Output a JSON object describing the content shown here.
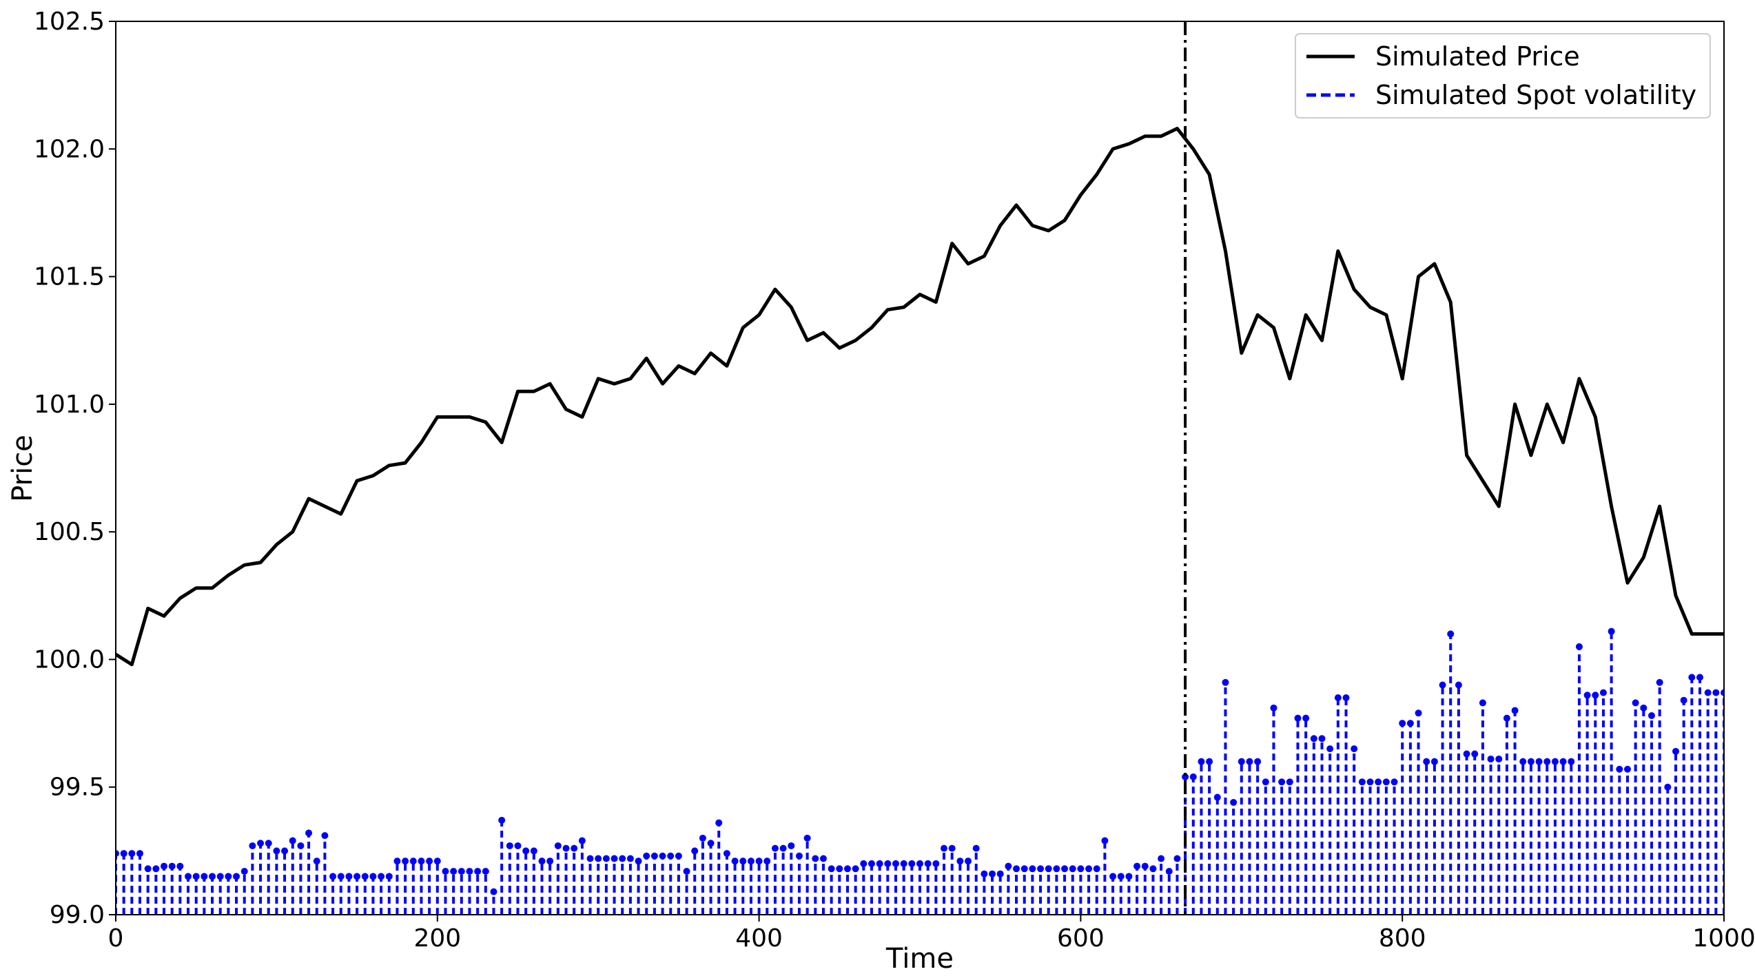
{
  "chart_data": {
    "type": "line_stem",
    "xlabel": "Time",
    "ylabel": "Price",
    "xlim": [
      0,
      1000
    ],
    "xticks": [
      0,
      200,
      400,
      600,
      800,
      1000
    ],
    "ylim": [
      99.0,
      102.5
    ],
    "yticks": [
      {
        "value": 99.0,
        "label": "99.0"
      },
      99.5,
      {
        "value": 100.0,
        "label": "100.0"
      },
      100.5,
      {
        "value": 101.0,
        "label": "101.0"
      },
      101.5,
      {
        "value": 102.0,
        "label": "102.0"
      },
      102.5
    ],
    "vline": 665,
    "legend": "upper right",
    "series": [
      {
        "name": "Simulated Price",
        "color": "#000000",
        "kind": "line",
        "x": [
          0,
          10,
          20,
          30,
          40,
          50,
          60,
          70,
          80,
          90,
          100,
          110,
          120,
          130,
          140,
          150,
          160,
          170,
          180,
          190,
          200,
          210,
          220,
          230,
          240,
          250,
          260,
          270,
          280,
          290,
          300,
          310,
          320,
          330,
          340,
          350,
          360,
          370,
          380,
          390,
          400,
          410,
          420,
          430,
          440,
          450,
          460,
          470,
          480,
          490,
          500,
          510,
          520,
          530,
          540,
          550,
          560,
          570,
          580,
          590,
          600,
          610,
          620,
          630,
          640,
          650,
          660,
          670,
          680,
          690,
          700,
          710,
          720,
          730,
          740,
          750,
          760,
          770,
          780,
          790,
          800,
          810,
          820,
          830,
          840,
          850,
          860,
          870,
          880,
          890,
          900,
          910,
          920,
          930,
          940,
          950,
          960,
          970,
          980,
          990,
          1000
        ],
        "values": [
          100.02,
          99.98,
          100.2,
          100.17,
          100.24,
          100.28,
          100.28,
          100.33,
          100.37,
          100.38,
          100.45,
          100.5,
          100.63,
          100.6,
          100.57,
          100.7,
          100.72,
          100.76,
          100.77,
          100.85,
          100.95,
          100.95,
          100.95,
          100.93,
          100.85,
          101.05,
          101.05,
          101.08,
          100.98,
          100.95,
          101.1,
          101.08,
          101.1,
          101.18,
          101.08,
          101.15,
          101.12,
          101.2,
          101.15,
          101.3,
          101.35,
          101.45,
          101.38,
          101.25,
          101.28,
          101.22,
          101.25,
          101.3,
          101.37,
          101.38,
          101.43,
          101.4,
          101.63,
          101.55,
          101.58,
          101.7,
          101.78,
          101.7,
          101.68,
          101.72,
          101.82,
          101.9,
          102.0,
          102.02,
          102.05,
          102.05,
          102.08,
          102.0,
          101.9,
          101.6,
          101.2,
          101.35,
          101.3,
          101.1,
          101.35,
          101.25,
          101.6,
          101.45,
          101.38,
          101.35,
          101.1,
          101.5,
          101.55,
          101.4,
          100.8,
          100.7,
          100.6,
          101.0,
          100.8,
          101.0,
          100.85,
          101.1,
          100.95,
          100.6,
          100.3,
          100.4,
          100.6,
          100.25,
          100.1,
          100.1,
          100.1
        ]
      },
      {
        "name": "Simulated Spot volatility",
        "color": "#0000ff",
        "kind": "stem",
        "x": [
          0,
          5,
          10,
          15,
          20,
          25,
          30,
          35,
          40,
          45,
          50,
          55,
          60,
          65,
          70,
          75,
          80,
          85,
          90,
          95,
          100,
          105,
          110,
          115,
          120,
          125,
          130,
          135,
          140,
          145,
          150,
          155,
          160,
          165,
          170,
          175,
          180,
          185,
          190,
          195,
          200,
          205,
          210,
          215,
          220,
          225,
          230,
          235,
          240,
          245,
          250,
          255,
          260,
          265,
          270,
          275,
          280,
          285,
          290,
          295,
          300,
          305,
          310,
          315,
          320,
          325,
          330,
          335,
          340,
          345,
          350,
          355,
          360,
          365,
          370,
          375,
          380,
          385,
          390,
          395,
          400,
          405,
          410,
          415,
          420,
          425,
          430,
          435,
          440,
          445,
          450,
          455,
          460,
          465,
          470,
          475,
          480,
          485,
          490,
          495,
          500,
          505,
          510,
          515,
          520,
          525,
          530,
          535,
          540,
          545,
          550,
          555,
          560,
          565,
          570,
          575,
          580,
          585,
          590,
          595,
          600,
          605,
          610,
          615,
          620,
          625,
          630,
          635,
          640,
          645,
          650,
          655,
          660,
          665,
          670,
          675,
          680,
          685,
          690,
          695,
          700,
          705,
          710,
          715,
          720,
          725,
          730,
          735,
          740,
          745,
          750,
          755,
          760,
          765,
          770,
          775,
          780,
          785,
          790,
          795,
          800,
          805,
          810,
          815,
          820,
          825,
          830,
          835,
          840,
          845,
          850,
          855,
          860,
          865,
          870,
          875,
          880,
          885,
          890,
          895,
          900,
          905,
          910,
          915,
          920,
          925,
          930,
          935,
          940,
          945,
          950,
          955,
          960,
          965,
          970,
          975,
          980,
          985,
          990,
          995,
          1000
        ],
        "values": [
          99.24,
          99.24,
          99.24,
          99.24,
          99.18,
          99.18,
          99.19,
          99.19,
          99.19,
          99.15,
          99.15,
          99.15,
          99.15,
          99.15,
          99.15,
          99.15,
          99.17,
          99.27,
          99.28,
          99.28,
          99.25,
          99.25,
          99.29,
          99.27,
          99.32,
          99.21,
          99.31,
          99.15,
          99.15,
          99.15,
          99.15,
          99.15,
          99.15,
          99.15,
          99.15,
          99.21,
          99.21,
          99.21,
          99.21,
          99.21,
          99.21,
          99.17,
          99.17,
          99.17,
          99.17,
          99.17,
          99.17,
          99.09,
          99.37,
          99.27,
          99.27,
          99.25,
          99.25,
          99.21,
          99.21,
          99.27,
          99.26,
          99.26,
          99.29,
          99.22,
          99.22,
          99.22,
          99.22,
          99.22,
          99.22,
          99.21,
          99.23,
          99.23,
          99.23,
          99.23,
          99.23,
          99.17,
          99.25,
          99.3,
          99.28,
          99.36,
          99.24,
          99.21,
          99.21,
          99.21,
          99.21,
          99.21,
          99.26,
          99.26,
          99.27,
          99.23,
          99.3,
          99.22,
          99.22,
          99.18,
          99.18,
          99.18,
          99.18,
          99.2,
          99.2,
          99.2,
          99.2,
          99.2,
          99.2,
          99.2,
          99.2,
          99.2,
          99.2,
          99.26,
          99.26,
          99.21,
          99.21,
          99.26,
          99.16,
          99.16,
          99.16,
          99.19,
          99.18,
          99.18,
          99.18,
          99.18,
          99.18,
          99.18,
          99.18,
          99.18,
          99.18,
          99.18,
          99.18,
          99.29,
          99.15,
          99.15,
          99.15,
          99.19,
          99.19,
          99.18,
          99.22,
          99.17,
          99.22,
          99.54,
          99.54,
          99.6,
          99.6,
          99.46,
          99.91,
          99.44,
          99.6,
          99.6,
          99.6,
          99.52,
          99.81,
          99.52,
          99.52,
          99.77,
          99.77,
          99.69,
          99.69,
          99.65,
          99.85,
          99.85,
          99.65,
          99.52,
          99.52,
          99.52,
          99.52,
          99.52,
          99.75,
          99.75,
          99.79,
          99.6,
          99.6,
          99.9,
          100.1,
          99.9,
          99.63,
          99.63,
          99.83,
          99.61,
          99.61,
          99.77,
          99.8,
          99.6,
          99.6,
          99.6,
          99.6,
          99.6,
          99.6,
          99.6,
          100.05,
          99.86,
          99.86,
          99.87,
          100.11,
          99.57,
          99.57,
          99.83,
          99.81,
          99.78,
          99.91,
          99.5,
          99.64,
          99.84,
          99.93,
          99.93,
          99.87,
          99.87,
          99.87
        ]
      }
    ]
  }
}
